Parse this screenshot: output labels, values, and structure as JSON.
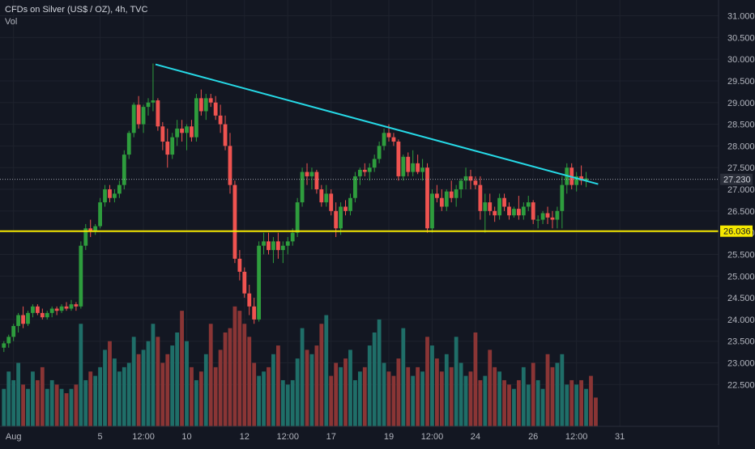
{
  "legend": {
    "title": "CFDs on Silver (US$ / OZ), 4h, TVC",
    "volume_label": "Vol"
  },
  "colors": {
    "background": "#131722",
    "up": "#26a69a",
    "candle_up": "#2e9d3d",
    "down": "#ef5350",
    "vol_up": "#1f6e68",
    "vol_down": "#8a3535",
    "trendline": "#26d9e6",
    "support_line": "#f5e800",
    "grid": "#1e222d",
    "axis_text": "#b2b5be",
    "price_tag": "#2a2e39"
  },
  "chart_data": {
    "type": "candlestick",
    "symbol": "CFDs on Silver (US$ / OZ)",
    "interval": "4h",
    "source": "TVC",
    "y_ticks": [
      "31.000",
      "30.500",
      "30.000",
      "29.500",
      "29.000",
      "28.500",
      "28.000",
      "27.500",
      "27.000",
      "26.500",
      "26.000",
      "25.500",
      "25.000",
      "24.500",
      "24.000",
      "23.500",
      "23.000",
      "22.500"
    ],
    "ylim": [
      22.04,
      31.14
    ],
    "x_ticks": [
      {
        "label": "Aug",
        "i": 2
      },
      {
        "label": "5",
        "i": 20
      },
      {
        "label": "12:00",
        "i": 29
      },
      {
        "label": "10",
        "i": 38
      },
      {
        "label": "12",
        "i": 50
      },
      {
        "label": "12:00",
        "i": 59
      },
      {
        "label": "17",
        "i": 68
      },
      {
        "label": "19",
        "i": 80
      },
      {
        "label": "12:00",
        "i": 89
      },
      {
        "label": "24",
        "i": 98
      },
      {
        "label": "26",
        "i": 110
      },
      {
        "label": "12:00",
        "i": 119
      },
      {
        "label": "31",
        "i": 128
      }
    ],
    "last_price": "27.230",
    "support_level": "26.036",
    "trendline": [
      {
        "i": 31.5,
        "price": 29.88
      },
      {
        "i": 123.5,
        "price": 27.12
      }
    ],
    "candles": [
      [
        23.35,
        23.5,
        23.25,
        23.45
      ],
      [
        23.45,
        23.65,
        23.35,
        23.6
      ],
      [
        23.6,
        23.9,
        23.5,
        23.85
      ],
      [
        23.85,
        24.15,
        23.7,
        24.1
      ],
      [
        24.1,
        24.3,
        23.8,
        23.9
      ],
      [
        23.9,
        24.2,
        23.85,
        24.15
      ],
      [
        24.15,
        24.35,
        24.05,
        24.3
      ],
      [
        24.3,
        24.35,
        24.1,
        24.15
      ],
      [
        24.15,
        24.25,
        24.0,
        24.05
      ],
      [
        24.05,
        24.2,
        24.0,
        24.15
      ],
      [
        24.15,
        24.3,
        24.05,
        24.25
      ],
      [
        24.25,
        24.3,
        24.1,
        24.2
      ],
      [
        24.2,
        24.35,
        24.15,
        24.3
      ],
      [
        24.3,
        24.4,
        24.2,
        24.25
      ],
      [
        24.25,
        24.45,
        24.2,
        24.35
      ],
      [
        24.35,
        24.4,
        24.2,
        24.3
      ],
      [
        24.3,
        25.8,
        24.25,
        25.7
      ],
      [
        25.7,
        26.2,
        25.6,
        26.1
      ],
      [
        26.1,
        26.3,
        25.9,
        26.05
      ],
      [
        26.05,
        26.2,
        25.95,
        26.15
      ],
      [
        26.15,
        26.8,
        26.1,
        26.7
      ],
      [
        26.7,
        27.1,
        26.6,
        27.0
      ],
      [
        27.0,
        27.1,
        26.7,
        26.8
      ],
      [
        26.8,
        27.0,
        26.7,
        26.9
      ],
      [
        26.9,
        27.2,
        26.8,
        27.1
      ],
      [
        27.1,
        27.9,
        27.0,
        27.8
      ],
      [
        27.8,
        28.35,
        27.7,
        28.3
      ],
      [
        28.3,
        29.0,
        28.2,
        28.95
      ],
      [
        28.95,
        29.15,
        28.4,
        28.5
      ],
      [
        28.5,
        28.95,
        28.3,
        28.9
      ],
      [
        28.9,
        29.1,
        28.7,
        29.0
      ],
      [
        29.0,
        29.9,
        28.8,
        29.05
      ],
      [
        29.05,
        29.1,
        28.35,
        28.45
      ],
      [
        28.45,
        28.55,
        27.9,
        28.1
      ],
      [
        28.1,
        28.4,
        27.5,
        27.8
      ],
      [
        27.8,
        28.3,
        27.7,
        28.2
      ],
      [
        28.2,
        28.6,
        28.0,
        28.4
      ],
      [
        28.4,
        28.6,
        28.1,
        28.3
      ],
      [
        28.3,
        28.5,
        27.9,
        28.45
      ],
      [
        28.45,
        28.6,
        28.1,
        28.2
      ],
      [
        28.2,
        29.2,
        28.1,
        29.1
      ],
      [
        29.1,
        29.3,
        28.7,
        28.8
      ],
      [
        28.8,
        29.2,
        28.6,
        29.1
      ],
      [
        29.1,
        29.2,
        28.9,
        29.0
      ],
      [
        29.0,
        29.15,
        28.6,
        28.7
      ],
      [
        28.7,
        28.95,
        28.3,
        28.5
      ],
      [
        28.5,
        28.7,
        27.9,
        28.0
      ],
      [
        28.0,
        28.3,
        26.9,
        27.1
      ],
      [
        27.1,
        27.2,
        25.3,
        25.4
      ],
      [
        25.4,
        25.6,
        24.9,
        25.1
      ],
      [
        25.1,
        25.2,
        24.5,
        24.6
      ],
      [
        24.6,
        24.8,
        24.1,
        24.3
      ],
      [
        24.3,
        24.5,
        23.9,
        24.0
      ],
      [
        24.0,
        25.8,
        23.95,
        25.7
      ],
      [
        25.7,
        26.0,
        25.5,
        25.8
      ],
      [
        25.8,
        26.0,
        25.5,
        25.6
      ],
      [
        25.6,
        25.9,
        25.3,
        25.8
      ],
      [
        25.8,
        26.0,
        25.4,
        25.6
      ],
      [
        25.6,
        25.8,
        25.3,
        25.7
      ],
      [
        25.7,
        25.9,
        25.5,
        25.8
      ],
      [
        25.8,
        26.1,
        25.7,
        26.0
      ],
      [
        26.0,
        26.8,
        25.9,
        26.7
      ],
      [
        26.7,
        27.5,
        26.6,
        27.4
      ],
      [
        27.4,
        27.6,
        27.1,
        27.3
      ],
      [
        27.3,
        27.5,
        27.0,
        27.4
      ],
      [
        27.4,
        27.45,
        26.9,
        27.0
      ],
      [
        27.0,
        27.1,
        26.6,
        26.7
      ],
      [
        26.7,
        27.1,
        26.6,
        26.9
      ],
      [
        26.9,
        27.0,
        26.4,
        26.5
      ],
      [
        26.5,
        26.7,
        25.9,
        26.1
      ],
      [
        26.1,
        26.7,
        25.95,
        26.6
      ],
      [
        26.6,
        26.75,
        26.4,
        26.5
      ],
      [
        26.5,
        26.9,
        26.4,
        26.8
      ],
      [
        26.8,
        27.4,
        26.7,
        27.3
      ],
      [
        27.3,
        27.5,
        27.1,
        27.45
      ],
      [
        27.45,
        27.6,
        27.3,
        27.4
      ],
      [
        27.4,
        27.6,
        27.2,
        27.5
      ],
      [
        27.5,
        27.8,
        27.4,
        27.7
      ],
      [
        27.7,
        28.1,
        27.6,
        28.0
      ],
      [
        28.0,
        28.4,
        27.9,
        28.3
      ],
      [
        28.3,
        28.5,
        28.1,
        28.2
      ],
      [
        28.2,
        28.3,
        28.0,
        28.1
      ],
      [
        28.1,
        28.15,
        27.2,
        27.3
      ],
      [
        27.3,
        27.8,
        27.2,
        27.75
      ],
      [
        27.75,
        27.85,
        27.3,
        27.4
      ],
      [
        27.4,
        27.9,
        27.3,
        27.6
      ],
      [
        27.6,
        27.8,
        27.35,
        27.4
      ],
      [
        27.4,
        27.7,
        27.2,
        27.5
      ],
      [
        27.5,
        27.6,
        26.0,
        26.1
      ],
      [
        26.1,
        27.0,
        26.0,
        26.9
      ],
      [
        26.9,
        27.1,
        26.7,
        26.8
      ],
      [
        26.8,
        27.0,
        26.5,
        26.6
      ],
      [
        26.6,
        27.0,
        26.5,
        26.95
      ],
      [
        26.95,
        27.2,
        26.7,
        26.8
      ],
      [
        26.8,
        27.1,
        26.6,
        27.0
      ],
      [
        27.0,
        27.25,
        26.8,
        27.2
      ],
      [
        27.2,
        27.5,
        27.0,
        27.3
      ],
      [
        27.3,
        27.45,
        27.0,
        27.2
      ],
      [
        27.2,
        27.3,
        27.0,
        27.1
      ],
      [
        27.1,
        27.3,
        26.3,
        26.5
      ],
      [
        26.5,
        26.9,
        26.0,
        26.7
      ],
      [
        26.7,
        26.9,
        26.4,
        26.5
      ],
      [
        26.5,
        26.6,
        26.25,
        26.4
      ],
      [
        26.4,
        26.9,
        26.3,
        26.8
      ],
      [
        26.8,
        26.9,
        26.5,
        26.6
      ],
      [
        26.6,
        26.7,
        26.3,
        26.4
      ],
      [
        26.4,
        26.6,
        26.35,
        26.55
      ],
      [
        26.55,
        26.85,
        26.3,
        26.4
      ],
      [
        26.4,
        26.7,
        26.3,
        26.6
      ],
      [
        26.6,
        26.85,
        26.5,
        26.7
      ],
      [
        26.7,
        26.75,
        26.2,
        26.3
      ],
      [
        26.3,
        26.4,
        26.1,
        26.3
      ],
      [
        26.3,
        26.5,
        26.2,
        26.45
      ],
      [
        26.45,
        26.6,
        26.2,
        26.35
      ],
      [
        26.35,
        26.5,
        26.1,
        26.3
      ],
      [
        26.3,
        26.6,
        26.1,
        26.5
      ],
      [
        26.5,
        27.3,
        26.1,
        27.1
      ],
      [
        27.1,
        27.6,
        26.9,
        27.5
      ],
      [
        27.5,
        27.6,
        27.0,
        27.1
      ],
      [
        27.1,
        27.4,
        26.95,
        27.3
      ],
      [
        27.3,
        27.55,
        27.1,
        27.2
      ],
      [
        27.2,
        27.4,
        27.05,
        27.25
      ]
    ],
    "volume": [
      22.4,
      22.8,
      22.6,
      23.0,
      22.5,
      22.4,
      22.8,
      22.6,
      22.9,
      22.4,
      22.6,
      22.5,
      22.4,
      22.3,
      22.4,
      22.5,
      23.9,
      22.6,
      22.8,
      22.7,
      22.9,
      23.3,
      23.5,
      23.1,
      22.8,
      22.9,
      23.0,
      23.6,
      23.2,
      23.3,
      23.5,
      23.9,
      23.6,
      23.0,
      23.2,
      23.4,
      23.7,
      24.2,
      23.5,
      22.9,
      22.6,
      22.8,
      23.2,
      23.9,
      22.9,
      23.3,
      23.7,
      23.8,
      24.3,
      24.2,
      23.9,
      23.6,
      23.0,
      22.7,
      22.8,
      22.9,
      23.2,
      23.4,
      22.6,
      22.5,
      22.6,
      23.1,
      23.8,
      23.3,
      23.2,
      23.4,
      23.9,
      24.1,
      22.7,
      23.0,
      22.9,
      23.1,
      23.3,
      22.6,
      22.8,
      22.9,
      23.4,
      23.7,
      24.0,
      23.0,
      22.8,
      22.7,
      23.1,
      23.8,
      22.9,
      22.7,
      22.9,
      22.8,
      23.6,
      23.4,
      23.1,
      22.8,
      23.2,
      22.9,
      23.6,
      23.0,
      22.7,
      22.8,
      23.7,
      22.6,
      22.7,
      23.3,
      22.9,
      22.8,
      22.6,
      22.5,
      22.4,
      22.6,
      22.9,
      22.5,
      23.0,
      22.6,
      22.4,
      23.2,
      22.9,
      23.0,
      23.2,
      22.5,
      22.6,
      22.5,
      22.6,
      22.4,
      22.7,
      22.2
    ]
  }
}
